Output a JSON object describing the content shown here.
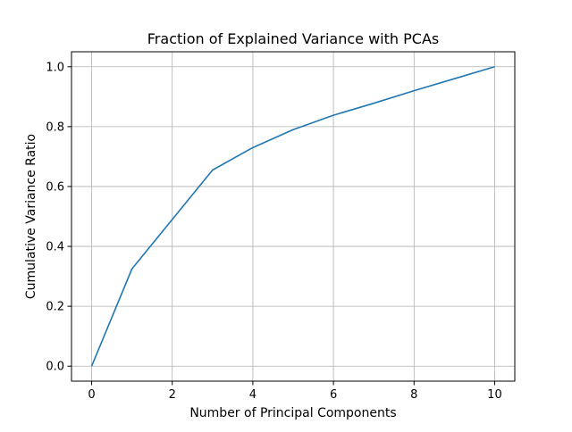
{
  "chart_data": {
    "type": "line",
    "title": "Fraction of Explained Variance with PCAs",
    "xlabel": "Number of Principal Components",
    "ylabel": "Cumulative Variance Ratio",
    "xlim": [
      -0.5,
      10.5
    ],
    "ylim": [
      -0.05,
      1.05
    ],
    "xticks": [
      0,
      2,
      4,
      6,
      8,
      10
    ],
    "xtick_labels": [
      "0",
      "2",
      "4",
      "6",
      "8",
      "10"
    ],
    "yticks": [
      0.0,
      0.2,
      0.4,
      0.6,
      0.8,
      1.0
    ],
    "ytick_labels": [
      "0.0",
      "0.2",
      "0.4",
      "0.6",
      "0.8",
      "1.0"
    ],
    "grid": true,
    "series": [
      {
        "color": "#1f77b4",
        "x": [
          0,
          1,
          2,
          3,
          4,
          5,
          6,
          7,
          8,
          9,
          10
        ],
        "y": [
          0.0,
          0.325,
          0.49,
          0.655,
          0.73,
          0.79,
          0.838,
          0.878,
          0.92,
          0.96,
          1.0
        ]
      }
    ]
  }
}
